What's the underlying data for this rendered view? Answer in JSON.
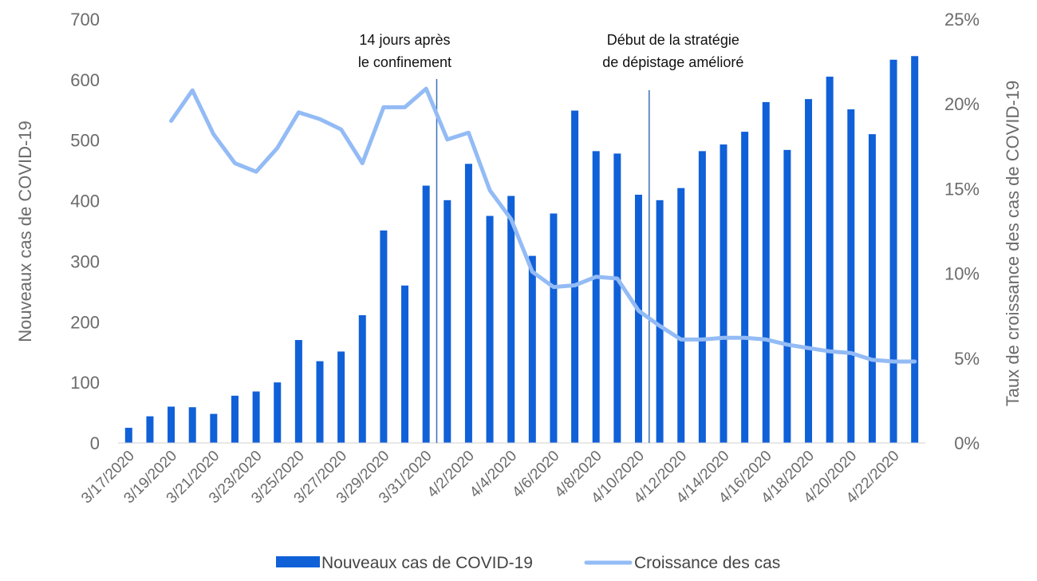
{
  "chart_data": {
    "type": "bar",
    "categories": [
      "3/17/2020",
      "3/18/2020",
      "3/19/2020",
      "3/20/2020",
      "3/21/2020",
      "3/22/2020",
      "3/23/2020",
      "3/24/2020",
      "3/25/2020",
      "3/26/2020",
      "3/27/2020",
      "3/28/2020",
      "3/29/2020",
      "3/30/2020",
      "3/31/2020",
      "4/1/2020",
      "4/2/2020",
      "4/3/2020",
      "4/4/2020",
      "4/5/2020",
      "4/6/2020",
      "4/7/2020",
      "4/8/2020",
      "4/9/2020",
      "4/10/2020",
      "4/11/2020",
      "4/12/2020",
      "4/13/2020",
      "4/14/2020",
      "4/15/2020",
      "4/16/2020",
      "4/17/2020",
      "4/18/2020",
      "4/19/2020",
      "4/20/2020",
      "4/21/2020",
      "4/22/2020",
      "4/23/2020"
    ],
    "x_tick_labels": [
      "3/17/2020",
      "3/19/2020",
      "3/21/2020",
      "3/23/2020",
      "3/25/2020",
      "3/27/2020",
      "3/29/2020",
      "3/31/2020",
      "4/2/2020",
      "4/4/2020",
      "4/6/2020",
      "4/8/2020",
      "4/10/2020",
      "4/12/2020",
      "4/14/2020",
      "4/16/2020",
      "4/18/2020",
      "4/20/2020",
      "4/22/2020"
    ],
    "series": [
      {
        "name": "Nouveaux cas de COVID-19",
        "type": "bar",
        "axis": "left",
        "color": "#1060d8",
        "values": [
          25,
          44,
          60,
          59,
          48,
          78,
          85,
          100,
          170,
          135,
          151,
          211,
          351,
          260,
          425,
          401,
          461,
          375,
          408,
          309,
          379,
          549,
          482,
          478,
          410,
          401,
          421,
          482,
          493,
          514,
          563,
          484,
          568,
          605,
          551,
          510,
          633,
          639
        ]
      },
      {
        "name": "Croissance des cas",
        "type": "line",
        "axis": "right",
        "color": "#93bbf5",
        "values": [
          null,
          null,
          0.19,
          0.208,
          0.182,
          0.165,
          0.16,
          0.174,
          0.195,
          0.191,
          0.185,
          0.165,
          0.198,
          0.198,
          0.209,
          0.179,
          0.183,
          0.149,
          0.132,
          0.101,
          0.092,
          0.093,
          0.098,
          0.097,
          0.078,
          0.069,
          0.061,
          0.061,
          0.062,
          0.062,
          0.061,
          0.058,
          0.056,
          0.054,
          0.053,
          0.049,
          0.048,
          0.048
        ]
      }
    ],
    "y_left": {
      "label": "Nouveaux cas de COVID-19",
      "min": 0,
      "max": 700,
      "ticks": [
        0,
        100,
        200,
        300,
        400,
        500,
        600,
        700
      ],
      "tick_labels": [
        "0",
        "100",
        "200",
        "300",
        "400",
        "500",
        "600",
        "700"
      ]
    },
    "y_right": {
      "label": "Taux de croissance des cas de COVID-19",
      "min": 0,
      "max": 0.25,
      "ticks": [
        0,
        0.05,
        0.1,
        0.15,
        0.2,
        0.25
      ],
      "tick_labels": [
        "0%",
        "5%",
        "10%",
        "15%",
        "20%",
        "25%"
      ]
    },
    "annotations": [
      {
        "at_index": 14.5,
        "text_lines": [
          "14 jours après",
          "le confinement"
        ]
      },
      {
        "at_index": 24.5,
        "text_lines": [
          "Début de la stratégie",
          "de dépistage amélioré"
        ]
      }
    ],
    "legend": {
      "placement": "bottom",
      "items": [
        {
          "label": "Nouveaux cas de COVID-19",
          "symbol": "bar"
        },
        {
          "label": "Croissance des cas",
          "symbol": "line"
        }
      ]
    },
    "grid": false
  }
}
